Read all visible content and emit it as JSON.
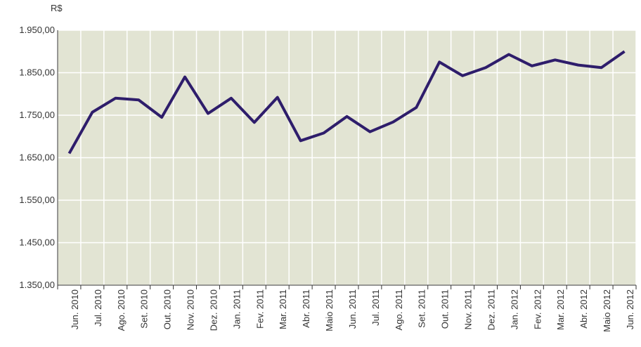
{
  "chart_data": {
    "type": "line",
    "y_unit": "R$",
    "categories": [
      "Jun. 2010",
      "Jul. 2010",
      "Ago. 2010",
      "Set. 2010",
      "Out. 2010",
      "Nov. 2010",
      "Dez. 2010",
      "Jan. 2011",
      "Fev. 2011",
      "Mar. 2011",
      "Abr. 2011",
      "Maio 2011",
      "Jun. 2011",
      "Jul. 2011",
      "Ago. 2011",
      "Set. 2011",
      "Out. 2011",
      "Nov. 2011",
      "Dez. 2011",
      "Jan. 2012",
      "Fev. 2012",
      "Mar. 2012",
      "Abr. 2012",
      "Maio 2012",
      "Jun. 2012"
    ],
    "series": [
      {
        "name": "R$",
        "color": "#2e1d6b",
        "values": [
          1660,
          1757,
          1790,
          1786,
          1745,
          1840,
          1754,
          1790,
          1733,
          1792,
          1690,
          1708,
          1747,
          1711,
          1734,
          1768,
          1875,
          1843,
          1862,
          1893,
          1866,
          1880,
          1868,
          1862,
          1900
        ]
      }
    ],
    "ylim": [
      1350,
      1950
    ],
    "yticks": [
      {
        "value": 1350,
        "label": "1.350,00"
      },
      {
        "value": 1450,
        "label": "1.450,00"
      },
      {
        "value": 1550,
        "label": "1.550,00"
      },
      {
        "value": 1650,
        "label": "1.650,00"
      },
      {
        "value": 1750,
        "label": "1.750,00"
      },
      {
        "value": 1850,
        "label": "1.850,00"
      },
      {
        "value": 1950,
        "label": "1.950,00"
      }
    ],
    "grid": true,
    "background": "#e2e4d3"
  }
}
